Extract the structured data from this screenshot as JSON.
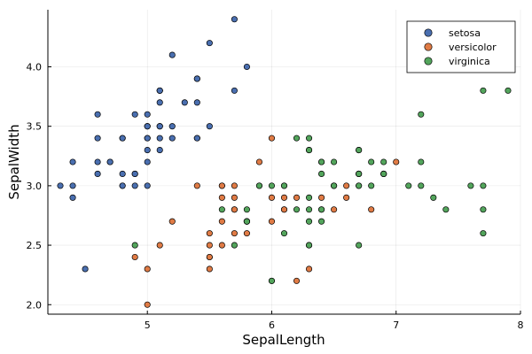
{
  "chart_data": {
    "type": "scatter",
    "title": "",
    "xlabel": "SepalLength",
    "ylabel": "SepalWidth",
    "xlim": [
      4.2,
      8.0
    ],
    "ylim": [
      1.92,
      4.48
    ],
    "xticks": [
      5,
      6,
      7,
      8
    ],
    "xtick_labels": [
      "5",
      "6",
      "7",
      "8"
    ],
    "yticks": [
      2.0,
      2.5,
      3.0,
      3.5,
      4.0
    ],
    "ytick_labels": [
      "2.0",
      "2.5",
      "3.0",
      "3.5",
      "4.0"
    ],
    "grid": true,
    "legend_position": "top-right",
    "series": [
      {
        "name": "setosa",
        "color": "#4a6fb0",
        "points": [
          [
            5.1,
            3.5
          ],
          [
            4.9,
            3.0
          ],
          [
            4.7,
            3.2
          ],
          [
            4.6,
            3.1
          ],
          [
            5.0,
            3.6
          ],
          [
            5.4,
            3.9
          ],
          [
            4.6,
            3.4
          ],
          [
            5.0,
            3.4
          ],
          [
            4.4,
            2.9
          ],
          [
            4.9,
            3.1
          ],
          [
            5.4,
            3.7
          ],
          [
            4.8,
            3.4
          ],
          [
            4.8,
            3.0
          ],
          [
            4.3,
            3.0
          ],
          [
            5.8,
            4.0
          ],
          [
            5.7,
            4.4
          ],
          [
            5.4,
            3.9
          ],
          [
            5.1,
            3.5
          ],
          [
            5.7,
            3.8
          ],
          [
            5.1,
            3.8
          ],
          [
            5.4,
            3.4
          ],
          [
            5.1,
            3.7
          ],
          [
            4.6,
            3.6
          ],
          [
            5.1,
            3.3
          ],
          [
            4.8,
            3.4
          ],
          [
            5.0,
            3.0
          ],
          [
            5.0,
            3.4
          ],
          [
            5.2,
            3.5
          ],
          [
            5.2,
            3.4
          ],
          [
            4.7,
            3.2
          ],
          [
            4.8,
            3.1
          ],
          [
            5.4,
            3.4
          ],
          [
            5.2,
            4.1
          ],
          [
            5.5,
            4.2
          ],
          [
            4.9,
            3.1
          ],
          [
            5.0,
            3.2
          ],
          [
            5.5,
            3.5
          ],
          [
            4.9,
            3.6
          ],
          [
            4.4,
            3.0
          ],
          [
            5.1,
            3.4
          ],
          [
            5.0,
            3.5
          ],
          [
            4.5,
            2.3
          ],
          [
            4.4,
            3.2
          ],
          [
            5.0,
            3.5
          ],
          [
            5.1,
            3.8
          ],
          [
            4.8,
            3.0
          ],
          [
            5.1,
            3.8
          ],
          [
            4.6,
            3.2
          ],
          [
            5.3,
            3.7
          ],
          [
            5.0,
            3.3
          ]
        ]
      },
      {
        "name": "versicolor",
        "color": "#e07b45",
        "points": [
          [
            7.0,
            3.2
          ],
          [
            6.4,
            3.2
          ],
          [
            6.9,
            3.1
          ],
          [
            5.5,
            2.3
          ],
          [
            6.5,
            2.8
          ],
          [
            5.7,
            2.8
          ],
          [
            6.3,
            3.3
          ],
          [
            4.9,
            2.4
          ],
          [
            6.6,
            2.9
          ],
          [
            5.2,
            2.7
          ],
          [
            5.0,
            2.0
          ],
          [
            5.9,
            3.0
          ],
          [
            6.0,
            2.2
          ],
          [
            6.1,
            2.9
          ],
          [
            5.6,
            2.9
          ],
          [
            6.7,
            3.1
          ],
          [
            5.6,
            3.0
          ],
          [
            5.8,
            2.7
          ],
          [
            6.2,
            2.2
          ],
          [
            5.6,
            2.5
          ],
          [
            5.9,
            3.2
          ],
          [
            6.1,
            2.8
          ],
          [
            6.3,
            2.5
          ],
          [
            6.1,
            2.8
          ],
          [
            6.4,
            2.9
          ],
          [
            6.6,
            3.0
          ],
          [
            6.8,
            2.8
          ],
          [
            6.7,
            3.0
          ],
          [
            6.0,
            2.9
          ],
          [
            5.7,
            2.6
          ],
          [
            5.5,
            2.4
          ],
          [
            5.5,
            2.4
          ],
          [
            5.8,
            2.7
          ],
          [
            6.0,
            2.7
          ],
          [
            5.4,
            3.0
          ],
          [
            6.0,
            3.4
          ],
          [
            6.7,
            3.1
          ],
          [
            6.3,
            2.3
          ],
          [
            5.6,
            3.0
          ],
          [
            5.5,
            2.5
          ],
          [
            5.5,
            2.6
          ],
          [
            6.1,
            3.0
          ],
          [
            5.8,
            2.6
          ],
          [
            5.0,
            2.3
          ],
          [
            5.6,
            2.7
          ],
          [
            5.7,
            3.0
          ],
          [
            5.7,
            2.9
          ],
          [
            6.2,
            2.9
          ],
          [
            5.1,
            2.5
          ],
          [
            5.7,
            2.8
          ]
        ]
      },
      {
        "name": "virginica",
        "color": "#53a55c",
        "points": [
          [
            6.3,
            3.3
          ],
          [
            5.8,
            2.7
          ],
          [
            7.1,
            3.0
          ],
          [
            6.3,
            2.9
          ],
          [
            6.5,
            3.0
          ],
          [
            7.6,
            3.0
          ],
          [
            4.9,
            2.5
          ],
          [
            7.3,
            2.9
          ],
          [
            6.7,
            2.5
          ],
          [
            7.2,
            3.6
          ],
          [
            6.5,
            3.2
          ],
          [
            6.4,
            2.7
          ],
          [
            6.8,
            3.0
          ],
          [
            5.7,
            2.5
          ],
          [
            5.8,
            2.8
          ],
          [
            6.4,
            3.2
          ],
          [
            6.5,
            3.0
          ],
          [
            7.7,
            3.8
          ],
          [
            7.7,
            2.6
          ],
          [
            6.0,
            2.2
          ],
          [
            6.9,
            3.2
          ],
          [
            5.6,
            2.8
          ],
          [
            7.7,
            2.8
          ],
          [
            6.3,
            2.7
          ],
          [
            6.7,
            3.3
          ],
          [
            7.2,
            3.2
          ],
          [
            6.2,
            2.8
          ],
          [
            6.1,
            3.0
          ],
          [
            6.4,
            2.8
          ],
          [
            7.2,
            3.0
          ],
          [
            7.4,
            2.8
          ],
          [
            7.9,
            3.8
          ],
          [
            6.4,
            2.8
          ],
          [
            6.3,
            2.8
          ],
          [
            6.1,
            2.6
          ],
          [
            7.7,
            3.0
          ],
          [
            6.3,
            3.4
          ],
          [
            6.4,
            3.1
          ],
          [
            6.0,
            3.0
          ],
          [
            6.9,
            3.1
          ],
          [
            6.7,
            3.1
          ],
          [
            6.9,
            3.1
          ],
          [
            5.8,
            2.7
          ],
          [
            6.8,
            3.2
          ],
          [
            6.7,
            3.3
          ],
          [
            6.7,
            3.0
          ],
          [
            6.3,
            2.5
          ],
          [
            6.5,
            3.0
          ],
          [
            6.2,
            3.4
          ],
          [
            5.9,
            3.0
          ]
        ]
      }
    ]
  }
}
